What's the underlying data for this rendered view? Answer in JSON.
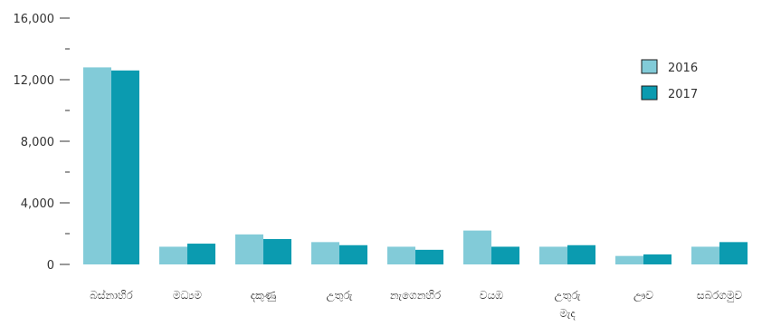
{
  "chart_data": {
    "type": "bar",
    "categories": [
      [
        "බස්නාහිර"
      ],
      [
        "මධ්‍යම"
      ],
      [
        "දකුණු"
      ],
      [
        "උතුරු"
      ],
      [
        "නැගෙනහිර"
      ],
      [
        "වයඹ"
      ],
      [
        "උතුරු",
        "මැද"
      ],
      [
        "ඌව"
      ],
      [
        "සබරගමුව"
      ]
    ],
    "series": [
      {
        "name": "2016",
        "color": "#82cbd8",
        "values": [
          12800,
          1150,
          1950,
          1450,
          1150,
          2200,
          1150,
          550,
          1150
        ]
      },
      {
        "name": "2017",
        "color": "#0b9bb0",
        "values": [
          12600,
          1350,
          1650,
          1250,
          950,
          1150,
          1250,
          650,
          1450
        ]
      }
    ],
    "y_ticks": [
      {
        "value": 0,
        "label": "0"
      },
      {
        "value": 4000,
        "label": "4,000"
      },
      {
        "value": 8000,
        "label": "8,000"
      },
      {
        "value": 12000,
        "label": "12,000"
      },
      {
        "value": 16000,
        "label": "16,000"
      }
    ],
    "y_minor_ticks": [
      2000,
      6000,
      10000,
      14000
    ],
    "ylim": [
      0,
      16000
    ],
    "title": "",
    "xlabel": "",
    "ylabel": "",
    "grid": false,
    "legend_position": "top-right"
  }
}
